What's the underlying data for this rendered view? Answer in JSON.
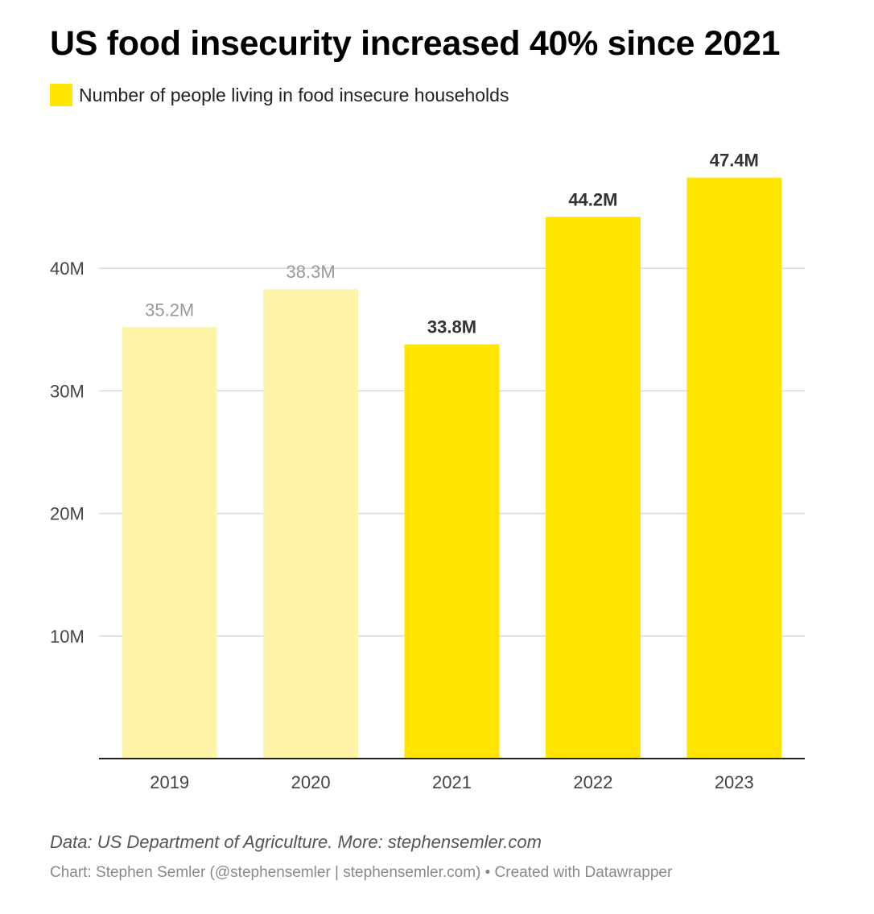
{
  "chart_data": {
    "type": "bar",
    "title": "US food insecurity increased 40% since 2021",
    "categories": [
      "2019",
      "2020",
      "2021",
      "2022",
      "2023"
    ],
    "series": [
      {
        "name": "Number of people living in food insecure households",
        "values": [
          35.2,
          38.3,
          33.8,
          44.2,
          47.4
        ],
        "labels": [
          "35.2M",
          "38.3M",
          "33.8M",
          "44.2M",
          "47.4M"
        ],
        "highlighted": [
          false,
          false,
          true,
          true,
          true
        ]
      }
    ],
    "yticks": [
      {
        "value": 10,
        "label": "10M"
      },
      {
        "value": 20,
        "label": "20M"
      },
      {
        "value": 30,
        "label": "30M"
      },
      {
        "value": 40,
        "label": "40M"
      }
    ],
    "ylim": [
      0,
      48
    ],
    "grid": true,
    "legend_position": "top-left",
    "colors": {
      "highlight": "#FFE500",
      "faded": "#FFF5A8",
      "label_highlight": "#333333",
      "label_faded": "#999999",
      "grid": "#d9d9d9",
      "axis": "#222222",
      "tick_text": "#444444"
    }
  },
  "footer": {
    "note": "Data: US Department of Agriculture. More: stephensemler.com",
    "credit": "Chart: Stephen Semler (@stephensemler | stephensemler.com) • Created with Datawrapper"
  }
}
